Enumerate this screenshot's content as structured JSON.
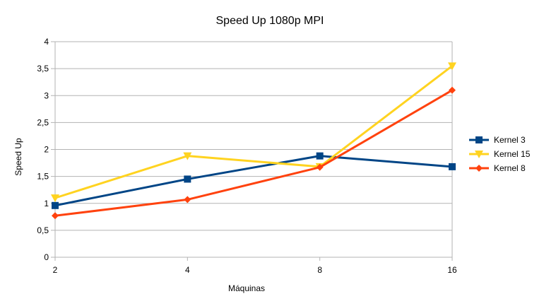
{
  "chart_data": {
    "type": "line",
    "title": "Speed Up 1080p MPI",
    "xlabel": "Máquinas",
    "ylabel": "Speed Up",
    "categories": [
      "2",
      "4",
      "8",
      "16"
    ],
    "ylim": [
      0,
      4
    ],
    "yticks": [
      "0",
      "0,5",
      "1",
      "1,5",
      "2",
      "2,5",
      "3",
      "3,5",
      "4"
    ],
    "grid": true,
    "legend_position": "right",
    "series": [
      {
        "name": "Kernel 3",
        "values": [
          0.96,
          1.45,
          1.88,
          1.68
        ],
        "color": "#004586",
        "marker": "square"
      },
      {
        "name": "Kernel 15",
        "values": [
          1.1,
          1.88,
          1.68,
          3.55
        ],
        "color": "#ffd320",
        "marker": "triangle-down"
      },
      {
        "name": "Kernel 8",
        "values": [
          0.77,
          1.07,
          1.67,
          3.1
        ],
        "color": "#ff420e",
        "marker": "diamond"
      }
    ]
  }
}
